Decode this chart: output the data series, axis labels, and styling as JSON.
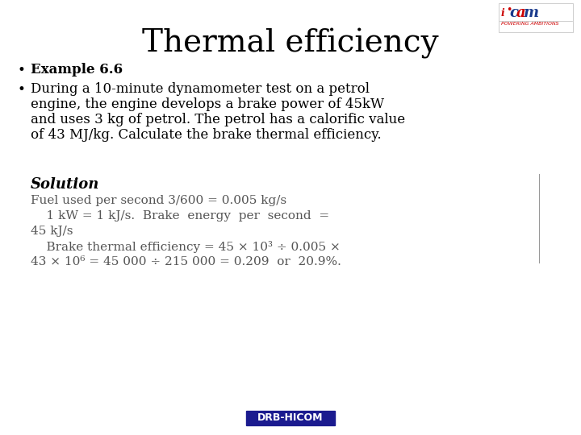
{
  "title": "Thermal efficiency",
  "title_fontsize": 28,
  "bg_color": "#ffffff",
  "bullet1_bold": "Example 6.6",
  "bullet2_lines": [
    "During a 10-minute dynamometer test on a petrol",
    "engine, the engine develops a brake power of 45kW",
    "and uses 3 kg of petrol. The petrol has a calorific value",
    "of 43 MJ/kg. Calculate the brake thermal efficiency."
  ],
  "solution_label": "Solution",
  "sol_line1": "Fuel used per second 3/600 = 0.005 kg/s",
  "sol_line2": "    1 kW = 1 kJ/s.  Brake  energy  per  second  =",
  "sol_line3": "45 kJ/s",
  "sol_line4": "    Brake thermal efficiency = 45 × 10³ ÷ 0.005 ×",
  "sol_line5": "43 × 10⁶ = 45 000 ÷ 215 000 = 0.209  or  20.9%.",
  "footer_text": "DRB-HICOM",
  "footer_bg": "#1b1b8f",
  "footer_fg": "#ffffff",
  "text_color": "#000000",
  "math_color": "#555555",
  "vert_line_color": "#999999"
}
